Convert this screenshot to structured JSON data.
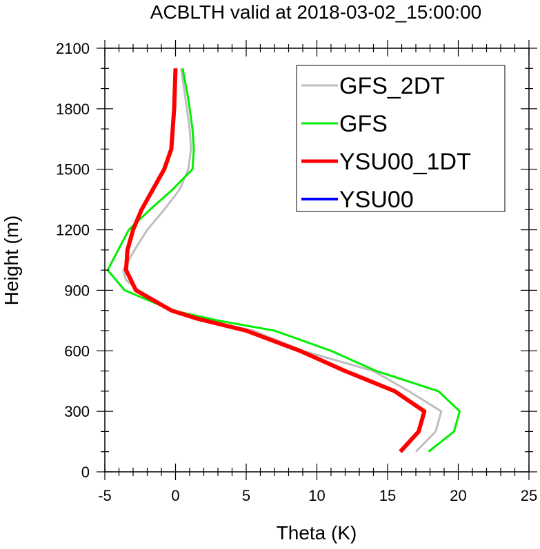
{
  "chart_data": {
    "type": "line",
    "title": "ACBLTH valid at 2018-03-02_15:00:00",
    "xlabel": "Theta (K)",
    "ylabel": "Height (m)",
    "xlim": [
      -5,
      25
    ],
    "ylim": [
      0,
      2100
    ],
    "xticks": [
      -5,
      0,
      5,
      10,
      15,
      20,
      25
    ],
    "yticks": [
      0,
      300,
      600,
      900,
      1200,
      1500,
      1800,
      2100
    ],
    "xtick_labels": [
      "-5",
      "0",
      "5",
      "10",
      "15",
      "20",
      "25"
    ],
    "ytick_labels": [
      "0",
      "300",
      "600",
      "900",
      "1200",
      "1500",
      "1800",
      "2100"
    ],
    "grid": false,
    "legend_position": "top-right",
    "series": [
      {
        "name": "GFS_2DT",
        "color": "#bebebe",
        "width": 3,
        "x": [
          17.0,
          18.4,
          18.8,
          16.5,
          14.0,
          11.5,
          9.0,
          5.5,
          2.0,
          -0.3,
          -2.6,
          -3.5,
          -3.7,
          -2.9,
          -2.0,
          -0.8,
          0.3,
          0.9,
          1.1,
          1.0,
          0.7,
          0.4
        ],
        "y": [
          100,
          200,
          300,
          400,
          500,
          550,
          600,
          700,
          750,
          800,
          900,
          950,
          1000,
          1100,
          1200,
          1300,
          1400,
          1500,
          1600,
          1700,
          1850,
          2000
        ]
      },
      {
        "name": "GFS",
        "color": "#00ee00",
        "width": 3,
        "x": [
          17.9,
          19.7,
          20.1,
          18.6,
          14.2,
          11.0,
          7.0,
          3.0,
          -0.2,
          -3.6,
          -4.8,
          -3.3,
          -1.8,
          -0.2,
          1.2,
          1.3,
          1.2,
          0.9,
          0.5
        ],
        "y": [
          100,
          200,
          300,
          400,
          500,
          600,
          700,
          750,
          800,
          900,
          1000,
          1200,
          1300,
          1400,
          1500,
          1600,
          1700,
          1850,
          2000
        ]
      },
      {
        "name": "YSU00_1DT",
        "color": "#ff0000",
        "width": 6,
        "x": [
          15.9,
          17.2,
          17.6,
          15.5,
          12.0,
          8.8,
          5.0,
          1.5,
          -0.3,
          -2.8,
          -3.5,
          -3.4,
          -3.0,
          -2.4,
          -1.6,
          -0.8,
          -0.3,
          -0.1,
          0.0
        ],
        "y": [
          100,
          200,
          300,
          400,
          500,
          600,
          700,
          760,
          800,
          900,
          1000,
          1100,
          1200,
          1300,
          1400,
          1500,
          1600,
          1800,
          2000
        ]
      },
      {
        "name": "YSU00",
        "color": "#0000ff",
        "width": 4,
        "x": [
          15.9,
          17.2,
          17.6,
          15.5,
          12.0,
          8.8,
          5.0,
          1.5,
          -0.3,
          -2.8,
          -3.5,
          -3.4,
          -3.0,
          -2.4,
          -1.6,
          -0.8,
          -0.3,
          -0.1,
          0.0
        ],
        "y": [
          100,
          200,
          300,
          400,
          500,
          600,
          700,
          760,
          800,
          900,
          1000,
          1100,
          1200,
          1300,
          1400,
          1500,
          1600,
          1800,
          2000
        ]
      }
    ],
    "draw_order": [
      "GFS_2DT",
      "GFS",
      "YSU00",
      "YSU00_1DT"
    ]
  }
}
